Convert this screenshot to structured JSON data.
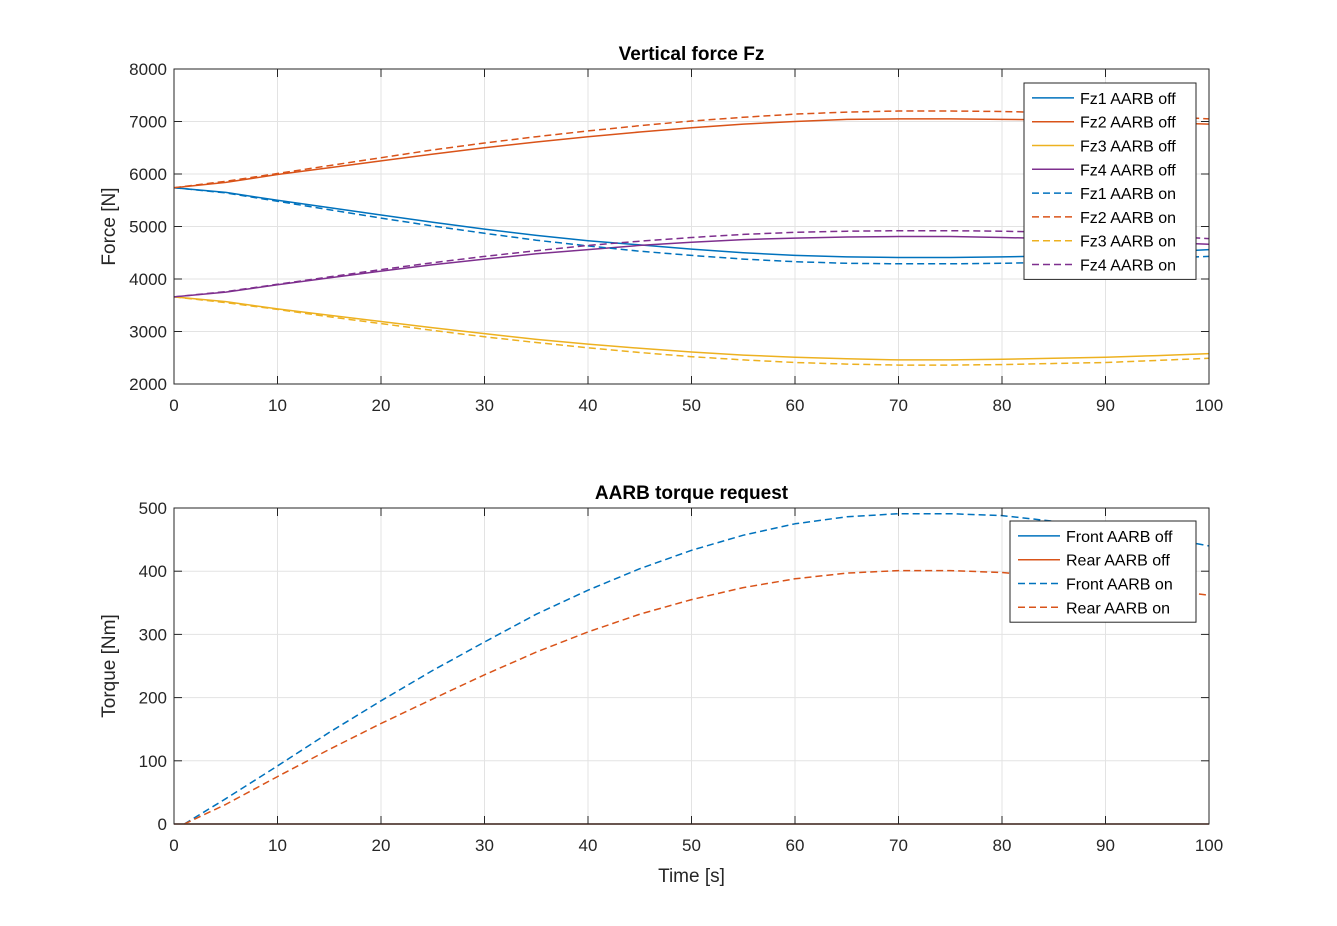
{
  "chart_data": [
    {
      "type": "line",
      "title": "Vertical force Fz",
      "xlabel": "",
      "ylabel": "Force [N]",
      "xlim": [
        0,
        100
      ],
      "ylim": [
        2000,
        8000
      ],
      "xticks": [
        0,
        10,
        20,
        30,
        40,
        50,
        60,
        70,
        80,
        90,
        100
      ],
      "yticks": [
        2000,
        3000,
        4000,
        5000,
        6000,
        7000,
        8000
      ],
      "grid": true,
      "legend_position": "top-right",
      "series": [
        {
          "name": "Fz1 AARB off",
          "color": "#0072BD",
          "style": "solid",
          "x": [
            0,
            5,
            10,
            15,
            20,
            25,
            30,
            35,
            40,
            45,
            50,
            55,
            60,
            65,
            70,
            75,
            80,
            85,
            90,
            95,
            100
          ],
          "values": [
            5740,
            5650,
            5500,
            5360,
            5220,
            5080,
            4950,
            4830,
            4730,
            4650,
            4570,
            4500,
            4450,
            4420,
            4410,
            4410,
            4420,
            4440,
            4470,
            4510,
            4560
          ]
        },
        {
          "name": "Fz2 AARB off",
          "color": "#D95319",
          "style": "solid",
          "x": [
            0,
            5,
            10,
            15,
            20,
            25,
            30,
            35,
            40,
            45,
            50,
            55,
            60,
            65,
            70,
            75,
            80,
            85,
            90,
            95,
            100
          ],
          "values": [
            5740,
            5840,
            5990,
            6120,
            6250,
            6380,
            6500,
            6610,
            6710,
            6800,
            6880,
            6950,
            7000,
            7040,
            7050,
            7050,
            7040,
            7030,
            7010,
            6980,
            6950
          ]
        },
        {
          "name": "Fz3 AARB off",
          "color": "#EDB120",
          "style": "solid",
          "x": [
            0,
            5,
            10,
            15,
            20,
            25,
            30,
            35,
            40,
            45,
            50,
            55,
            60,
            65,
            70,
            75,
            80,
            85,
            90,
            95,
            100
          ],
          "values": [
            3660,
            3570,
            3430,
            3310,
            3190,
            3070,
            2960,
            2850,
            2760,
            2680,
            2610,
            2550,
            2510,
            2480,
            2460,
            2460,
            2470,
            2490,
            2510,
            2540,
            2580
          ]
        },
        {
          "name": "Fz4 AARB off",
          "color": "#7E2F8E",
          "style": "solid",
          "x": [
            0,
            5,
            10,
            15,
            20,
            25,
            30,
            35,
            40,
            45,
            50,
            55,
            60,
            65,
            70,
            75,
            80,
            85,
            90,
            95,
            100
          ],
          "values": [
            3660,
            3750,
            3890,
            4020,
            4150,
            4270,
            4380,
            4480,
            4560,
            4640,
            4700,
            4750,
            4780,
            4800,
            4810,
            4810,
            4790,
            4770,
            4740,
            4700,
            4660
          ]
        },
        {
          "name": "Fz1 AARB on",
          "color": "#0072BD",
          "style": "dashed",
          "x": [
            0,
            5,
            10,
            15,
            20,
            25,
            30,
            35,
            40,
            45,
            50,
            55,
            60,
            65,
            70,
            75,
            80,
            85,
            90,
            95,
            100
          ],
          "values": [
            5740,
            5640,
            5480,
            5320,
            5160,
            5010,
            4870,
            4740,
            4630,
            4530,
            4450,
            4380,
            4330,
            4300,
            4290,
            4290,
            4300,
            4320,
            4350,
            4390,
            4430
          ]
        },
        {
          "name": "Fz2 AARB on",
          "color": "#D95319",
          "style": "dashed",
          "x": [
            0,
            5,
            10,
            15,
            20,
            25,
            30,
            35,
            40,
            45,
            50,
            55,
            60,
            65,
            70,
            75,
            80,
            85,
            90,
            95,
            100
          ],
          "values": [
            5740,
            5860,
            6010,
            6160,
            6310,
            6460,
            6590,
            6710,
            6820,
            6920,
            7010,
            7080,
            7140,
            7180,
            7200,
            7200,
            7190,
            7170,
            7140,
            7100,
            7050
          ]
        },
        {
          "name": "Fz3 AARB on",
          "color": "#EDB120",
          "style": "dashed",
          "x": [
            0,
            5,
            10,
            15,
            20,
            25,
            30,
            35,
            40,
            45,
            50,
            55,
            60,
            65,
            70,
            75,
            80,
            85,
            90,
            95,
            100
          ],
          "values": [
            3660,
            3550,
            3420,
            3280,
            3150,
            3020,
            2900,
            2790,
            2690,
            2600,
            2520,
            2460,
            2410,
            2380,
            2360,
            2360,
            2370,
            2390,
            2410,
            2450,
            2490
          ]
        },
        {
          "name": "Fz4 AARB on",
          "color": "#7E2F8E",
          "style": "dashed",
          "x": [
            0,
            5,
            10,
            15,
            20,
            25,
            30,
            35,
            40,
            45,
            50,
            55,
            60,
            65,
            70,
            75,
            80,
            85,
            90,
            95,
            100
          ],
          "values": [
            3660,
            3760,
            3900,
            4040,
            4180,
            4310,
            4430,
            4540,
            4640,
            4720,
            4790,
            4850,
            4890,
            4910,
            4920,
            4920,
            4910,
            4890,
            4860,
            4820,
            4770
          ]
        }
      ]
    },
    {
      "type": "line",
      "title": "AARB torque request",
      "xlabel": "Time [s]",
      "ylabel": "Torque [Nm]",
      "xlim": [
        0,
        100
      ],
      "ylim": [
        0,
        500
      ],
      "xticks": [
        0,
        10,
        20,
        30,
        40,
        50,
        60,
        70,
        80,
        90,
        100
      ],
      "yticks": [
        0,
        100,
        200,
        300,
        400,
        500
      ],
      "grid": true,
      "legend_position": "top-right",
      "series": [
        {
          "name": "Front AARB off",
          "color": "#0072BD",
          "style": "solid",
          "x": [
            0,
            100
          ],
          "values": [
            0,
            0
          ]
        },
        {
          "name": "Rear AARB off",
          "color": "#D95319",
          "style": "solid",
          "x": [
            0,
            100
          ],
          "values": [
            0,
            0
          ]
        },
        {
          "name": "Front AARB on",
          "color": "#0072BD",
          "style": "dashed",
          "x": [
            1,
            5,
            10,
            15,
            20,
            25,
            30,
            35,
            40,
            45,
            50,
            55,
            60,
            65,
            70,
            75,
            80,
            85,
            90,
            95,
            100
          ],
          "values": [
            0,
            40,
            92,
            145,
            195,
            243,
            288,
            332,
            370,
            404,
            433,
            457,
            475,
            486,
            491,
            491,
            488,
            479,
            468,
            455,
            440
          ]
        },
        {
          "name": "Rear AARB on",
          "color": "#D95319",
          "style": "dashed",
          "x": [
            1,
            5,
            10,
            15,
            20,
            25,
            30,
            35,
            40,
            45,
            50,
            55,
            60,
            65,
            70,
            75,
            80,
            85,
            90,
            95,
            100
          ],
          "values": [
            0,
            31,
            75,
            118,
            159,
            198,
            236,
            272,
            304,
            332,
            355,
            374,
            388,
            397,
            401,
            401,
            398,
            391,
            382,
            372,
            362
          ]
        }
      ]
    }
  ]
}
